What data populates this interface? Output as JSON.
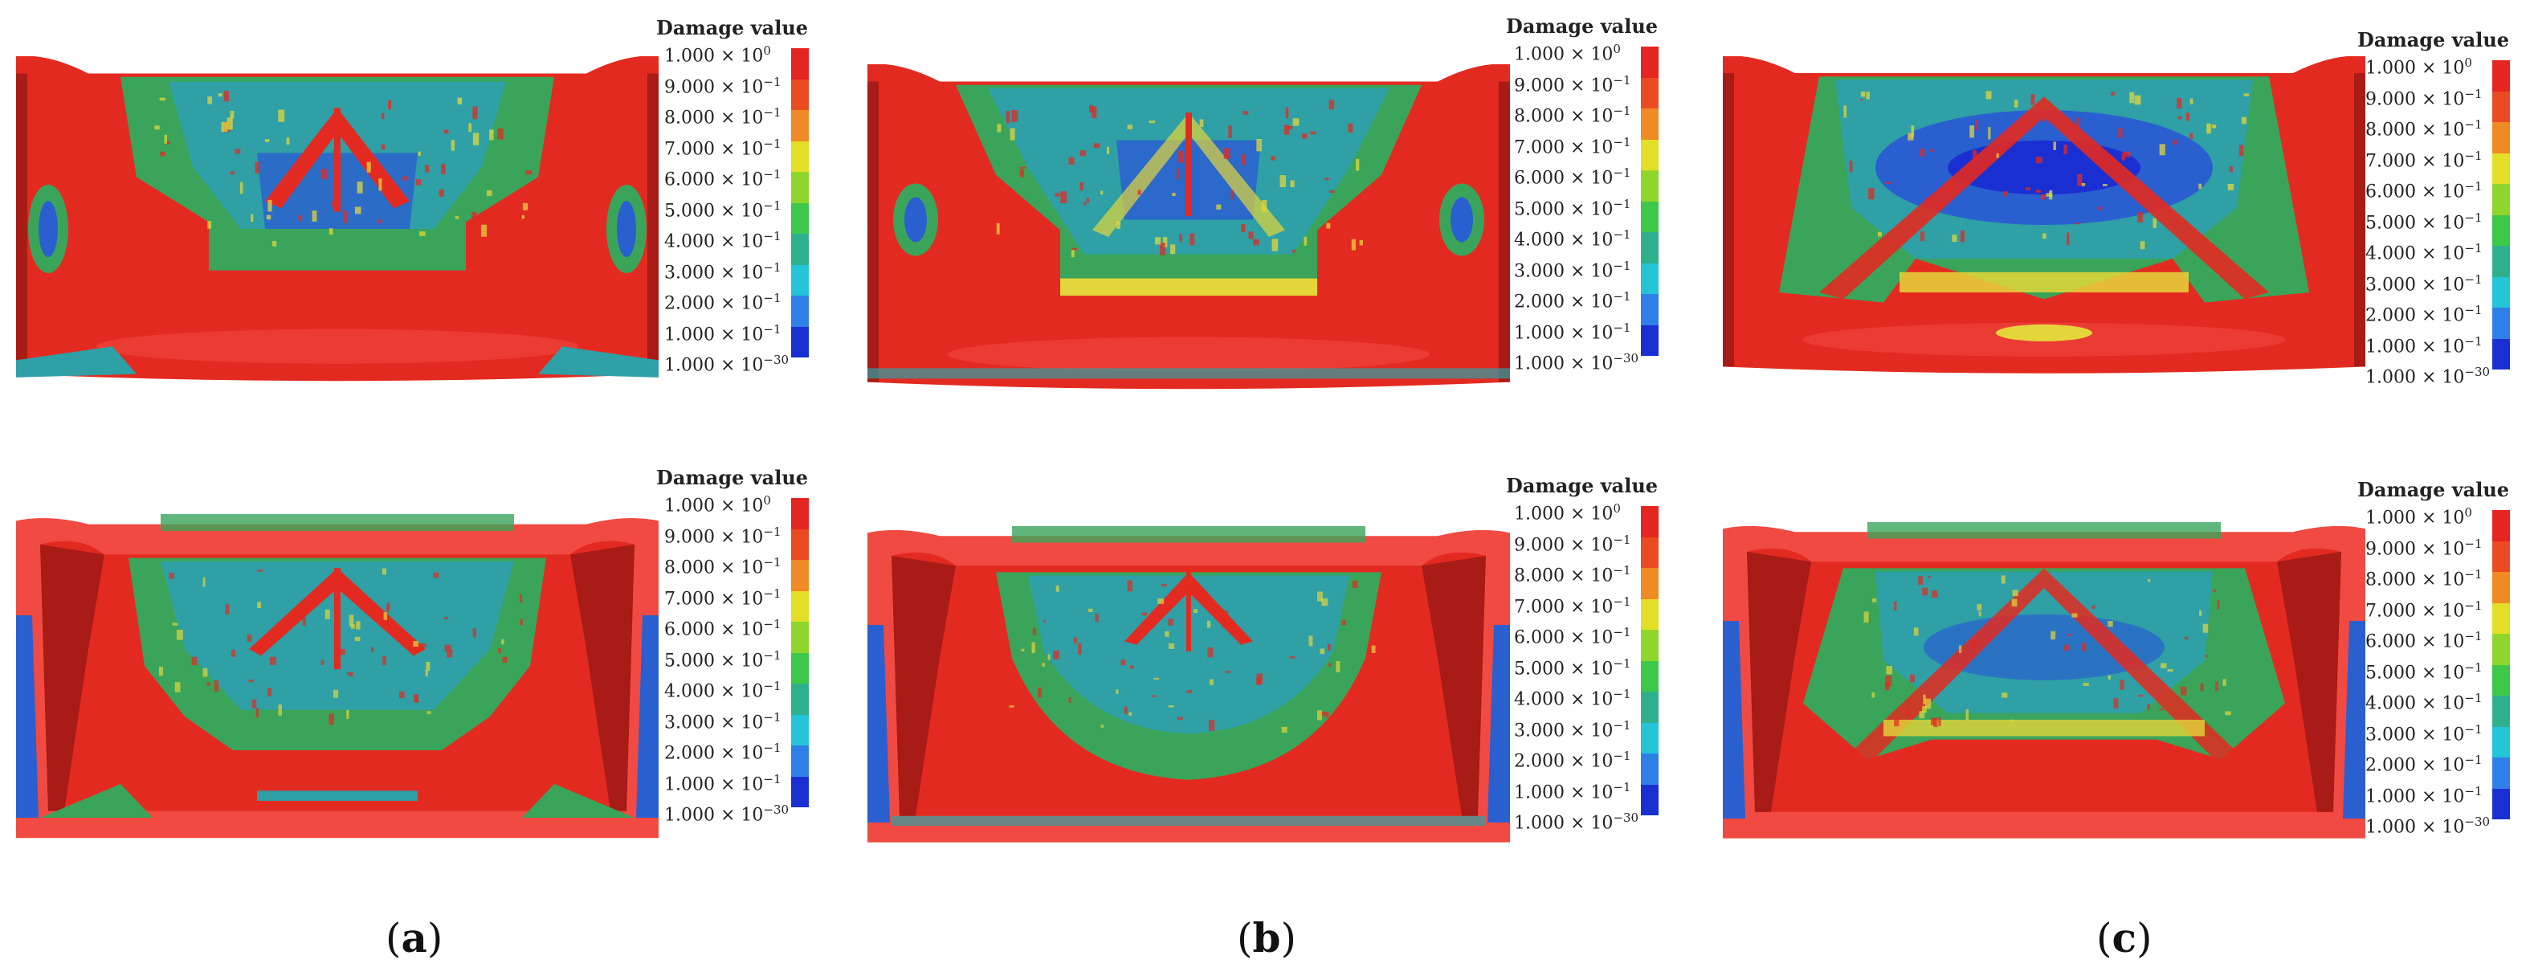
{
  "colors": {
    "scale": [
      "#1a2fd1",
      "#2f7fe8",
      "#24c5d8",
      "#2fb08d",
      "#3ec84a",
      "#8fd62c",
      "#e3df26",
      "#f08a24",
      "#ea4b23",
      "#e5251f"
    ],
    "red": "#e32a20",
    "dark_red": "#a81b16",
    "bright_red": "#f04a42",
    "green": "#3aa55a",
    "teal": "#2ea0a6",
    "blue": "#2a5fd0",
    "yellow": "#e4d63a"
  },
  "legend": {
    "title": "Damage value",
    "labels_top_down": [
      {
        "m": "1.000 × 10",
        "e": "0"
      },
      {
        "m": "9.000 × 10",
        "e": "−1"
      },
      {
        "m": "8.000 × 10",
        "e": "−1"
      },
      {
        "m": "7.000 × 10",
        "e": "−1"
      },
      {
        "m": "6.000 × 10",
        "e": "−1"
      },
      {
        "m": "5.000 × 10",
        "e": "−1"
      },
      {
        "m": "4.000 × 10",
        "e": "−1"
      },
      {
        "m": "3.000 × 10",
        "e": "−1"
      },
      {
        "m": "2.000 × 10",
        "e": "−1"
      },
      {
        "m": "1.000 × 10",
        "e": "−1"
      },
      {
        "m": "1.000 × 10",
        "e": "−30"
      }
    ]
  },
  "panels": [
    {
      "id": "a",
      "caption": "a",
      "views": [
        "outer",
        "inner"
      ]
    },
    {
      "id": "b",
      "caption": "b",
      "views": [
        "outer",
        "inner"
      ]
    },
    {
      "id": "c",
      "caption": "c",
      "views": [
        "outer",
        "inner"
      ]
    }
  ]
}
